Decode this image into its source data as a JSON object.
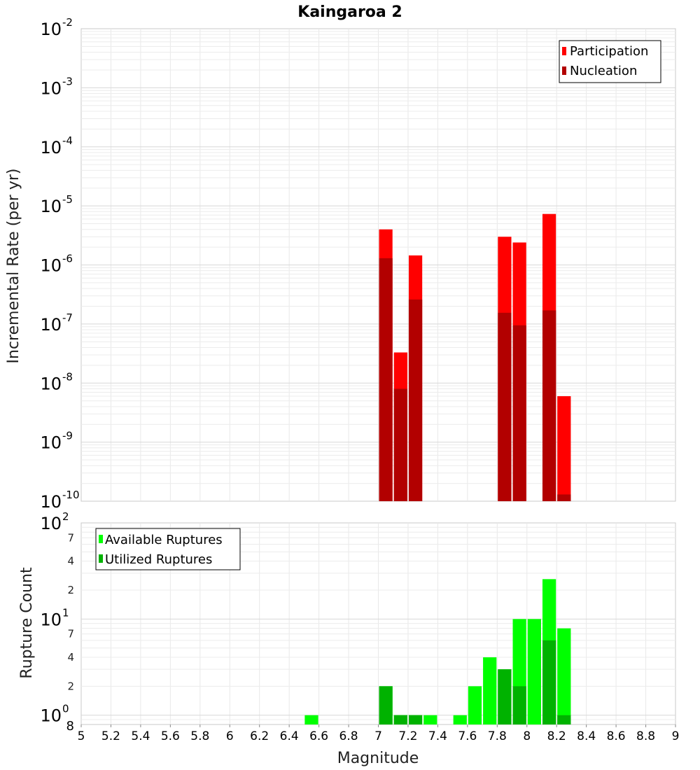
{
  "chart_data": [
    {
      "type": "bar",
      "title": "Kaingaroa 2",
      "ylabel": "Incremental Rate (per yr)",
      "y_scale": "log",
      "ylim": [
        1e-10,
        0.01
      ],
      "xlim": [
        5,
        9
      ],
      "bin_width": 0.1,
      "y_major_ticks": [
        {
          "base": "10",
          "exp": "-10",
          "value": 1e-10
        },
        {
          "base": "10",
          "exp": "-9",
          "value": 1e-09
        },
        {
          "base": "10",
          "exp": "-8",
          "value": 1e-08
        },
        {
          "base": "10",
          "exp": "-7",
          "value": 1e-07
        },
        {
          "base": "10",
          "exp": "-6",
          "value": 1e-06
        },
        {
          "base": "10",
          "exp": "-5",
          "value": 1e-05
        },
        {
          "base": "10",
          "exp": "-4",
          "value": 0.0001
        },
        {
          "base": "10",
          "exp": "-3",
          "value": 0.001
        },
        {
          "base": "10",
          "exp": "-2",
          "value": 0.01
        }
      ],
      "legend": [
        {
          "name": "Participation",
          "color": "#ff0000"
        },
        {
          "name": "Nucleation",
          "color": "#b20000"
        }
      ],
      "series": [
        {
          "name": "Participation",
          "color": "#ff0000",
          "points": [
            {
              "x": 7.05,
              "y": 4e-06
            },
            {
              "x": 7.15,
              "y": 3.3e-08
            },
            {
              "x": 7.25,
              "y": 1.45e-06
            },
            {
              "x": 7.85,
              "y": 3e-06
            },
            {
              "x": 7.95,
              "y": 2.4e-06
            },
            {
              "x": 8.15,
              "y": 7.3e-06
            },
            {
              "x": 8.25,
              "y": 6e-09
            }
          ]
        },
        {
          "name": "Nucleation",
          "color": "#b20000",
          "points": [
            {
              "x": 7.05,
              "y": 1.3e-06
            },
            {
              "x": 7.15,
              "y": 8e-09
            },
            {
              "x": 7.25,
              "y": 2.6e-07
            },
            {
              "x": 7.85,
              "y": 1.55e-07
            },
            {
              "x": 7.95,
              "y": 9.5e-08
            },
            {
              "x": 8.15,
              "y": 1.7e-07
            },
            {
              "x": 8.25,
              "y": 1.3e-10
            }
          ]
        }
      ]
    },
    {
      "type": "bar",
      "xlabel": "Magnitude",
      "ylabel": "Rupture Count",
      "y_scale": "log",
      "ylim": [
        0.8,
        100
      ],
      "xlim": [
        5,
        9
      ],
      "bin_width": 0.1,
      "x_ticks": [
        "5",
        "5.2",
        "5.4",
        "5.6",
        "5.8",
        "6",
        "6.2",
        "6.4",
        "6.6",
        "6.8",
        "7",
        "7.2",
        "7.4",
        "7.6",
        "7.8",
        "8",
        "8.2",
        "8.4",
        "8.6",
        "8.8",
        "9"
      ],
      "y_major_ticks": [
        {
          "base": "10",
          "exp": "0",
          "value": 1
        },
        {
          "base": "10",
          "exp": "1",
          "value": 10
        },
        {
          "base": "10",
          "exp": "2",
          "value": 100
        }
      ],
      "y_minor_ticks": [
        {
          "label": "8",
          "value": 0.8
        },
        {
          "label": "2",
          "value": 2
        },
        {
          "label": "4",
          "value": 4
        },
        {
          "label": "7",
          "value": 7
        },
        {
          "label": "2",
          "value": 20
        },
        {
          "label": "4",
          "value": 40
        },
        {
          "label": "7",
          "value": 70
        }
      ],
      "legend": [
        {
          "name": "Available Ruptures",
          "color": "#00ff00"
        },
        {
          "name": "Utilized Ruptures",
          "color": "#00b200"
        }
      ],
      "series": [
        {
          "name": "Available Ruptures",
          "color": "#00ff00",
          "points": [
            {
              "x": 6.55,
              "y": 1
            },
            {
              "x": 7.05,
              "y": 2
            },
            {
              "x": 7.15,
              "y": 1
            },
            {
              "x": 7.25,
              "y": 1
            },
            {
              "x": 7.35,
              "y": 1
            },
            {
              "x": 7.55,
              "y": 1
            },
            {
              "x": 7.65,
              "y": 2
            },
            {
              "x": 7.75,
              "y": 4
            },
            {
              "x": 7.85,
              "y": 3
            },
            {
              "x": 7.95,
              "y": 10
            },
            {
              "x": 8.05,
              "y": 10
            },
            {
              "x": 8.15,
              "y": 26
            },
            {
              "x": 8.25,
              "y": 8
            }
          ]
        },
        {
          "name": "Utilized Ruptures",
          "color": "#00b200",
          "points": [
            {
              "x": 7.05,
              "y": 2
            },
            {
              "x": 7.15,
              "y": 1
            },
            {
              "x": 7.25,
              "y": 1
            },
            {
              "x": 7.85,
              "y": 3
            },
            {
              "x": 7.95,
              "y": 2
            },
            {
              "x": 8.15,
              "y": 6
            },
            {
              "x": 8.25,
              "y": 1
            }
          ]
        }
      ]
    }
  ]
}
